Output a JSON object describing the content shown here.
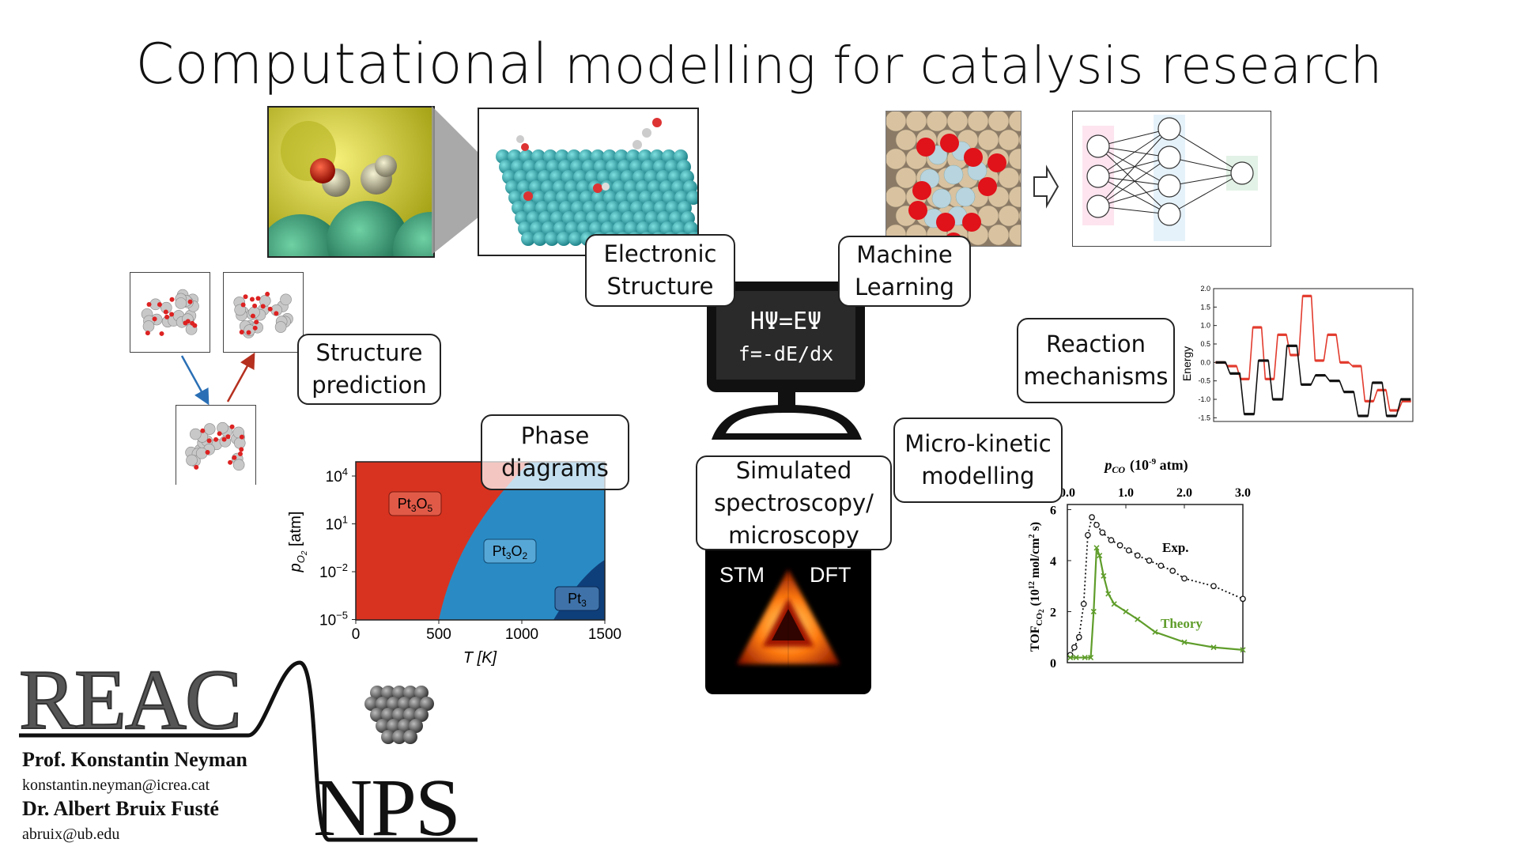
{
  "title": {
    "part1": "Computational",
    "part2": " modelling for catalysis research"
  },
  "callouts": {
    "electronic_structure": [
      "Electronic",
      "Structure"
    ],
    "machine_learning": [
      "Machine",
      "Learning"
    ],
    "structure_prediction": [
      "Structure",
      "prediction"
    ],
    "reaction_mechanisms": [
      "Reaction",
      "mechanisms"
    ],
    "phase_diagrams": [
      "Phase",
      "diagrams"
    ],
    "micro_kinetic": [
      "Micro-kinetic",
      "modelling"
    ],
    "spectroscopy": [
      "Simulated",
      "spectroscopy/",
      "microscopy"
    ]
  },
  "computer": {
    "line1": "HΨ=EΨ",
    "line2": "f=-dE/dx"
  },
  "stm_dft": {
    "left": "STM",
    "right": "DFT"
  },
  "phase_diagram": {
    "ylabel": "p",
    "ylabel_sub": "O",
    "ylabel_sub2": "2",
    "ylabel_unit": " [atm]",
    "xlabel": "T [K]",
    "xticks": [
      "0",
      "500",
      "1000",
      "1500"
    ],
    "yticks": [
      {
        "base": "10",
        "exp": "4"
      },
      {
        "base": "10",
        "exp": "1"
      },
      {
        "base": "10",
        "exp": "−2"
      },
      {
        "base": "10",
        "exp": "−5"
      }
    ],
    "regions": [
      {
        "name": "Pt",
        "sub1": "3",
        "mid": "O",
        "sub2": "5",
        "color": "#d83320"
      },
      {
        "name": "Pt",
        "sub1": "3",
        "mid": "O",
        "sub2": "2",
        "color": "#2a8bc4"
      },
      {
        "name": "Pt",
        "sub1": "3",
        "mid": "",
        "sub2": "",
        "color": "#0f3f7a"
      }
    ]
  },
  "energy_chart": {
    "ylabel": "Energy",
    "yticks": [
      "2.0",
      "1.5",
      "1.0",
      "0.5",
      "0.0",
      "-0.5",
      "-1.0",
      "-1.5"
    ],
    "ylim": [
      -1.6,
      2.0
    ],
    "series": [
      {
        "color": "#e23b2e",
        "levels": [
          0,
          -0.1,
          -0.45,
          0.95,
          -0.45,
          0.75,
          0.2,
          1.8,
          0.05,
          0.75,
          0.0,
          -0.1,
          -1.05,
          -0.75,
          -1.3,
          -1.05
        ]
      },
      {
        "color": "#111111",
        "levels": [
          0,
          -0.3,
          -1.4,
          0.05,
          -1.0,
          0.45,
          -0.6,
          -0.35,
          -0.5,
          -0.8,
          -1.45,
          -0.55,
          -1.45,
          -1.0
        ]
      }
    ]
  },
  "tof_chart": {
    "top_label": "p",
    "top_label_sub": "CO",
    "top_label_unit_a": "(10",
    "top_label_unit_exp": "-9",
    "top_label_unit_b": " atm)",
    "top_ticks": [
      "0.0",
      "1.0",
      "2.0",
      "3.0"
    ],
    "ylabel_a": "TOF",
    "ylabel_sub": "CO",
    "ylabel_sub2": "2",
    "ylabel_b": "  (10",
    "ylabel_exp": "12",
    "ylabel_c": " mol/cm",
    "ylabel_exp2": "2",
    "ylabel_d": " s)",
    "yticks": [
      "6",
      "4",
      "2",
      "0"
    ],
    "ylim": [
      0,
      6.2
    ],
    "xlim": [
      0,
      3.0
    ],
    "exp_label": "Exp.",
    "theory_label": "Theory",
    "exp_color": "#111111",
    "theory_color": "#5f9d2b",
    "exp": {
      "x": [
        0.05,
        0.12,
        0.2,
        0.28,
        0.35,
        0.42,
        0.5,
        0.6,
        0.75,
        0.9,
        1.05,
        1.2,
        1.4,
        1.6,
        1.8,
        2.0,
        2.5,
        3.0
      ],
      "y": [
        0.3,
        0.6,
        1.0,
        2.3,
        5.0,
        5.7,
        5.4,
        5.1,
        4.8,
        4.6,
        4.4,
        4.2,
        4.0,
        3.8,
        3.6,
        3.3,
        3.0,
        2.5
      ]
    },
    "theory": {
      "x": [
        0.05,
        0.15,
        0.3,
        0.4,
        0.45,
        0.5,
        0.55,
        0.62,
        0.7,
        0.8,
        1.0,
        1.2,
        1.5,
        2.0,
        2.5,
        3.0
      ],
      "y": [
        0.2,
        0.2,
        0.2,
        0.2,
        2.0,
        4.5,
        4.2,
        3.4,
        2.7,
        2.3,
        2.0,
        1.7,
        1.2,
        0.8,
        0.6,
        0.5
      ]
    }
  },
  "logo": {
    "reac": "REAC",
    "nps": "NPS"
  },
  "contacts": [
    {
      "name": "Prof. Konstantin Neyman",
      "email": "konstantin.neyman@icrea.cat"
    },
    {
      "name": "Dr. Albert Bruix Fusté",
      "email": "abruix@ub.edu"
    }
  ]
}
